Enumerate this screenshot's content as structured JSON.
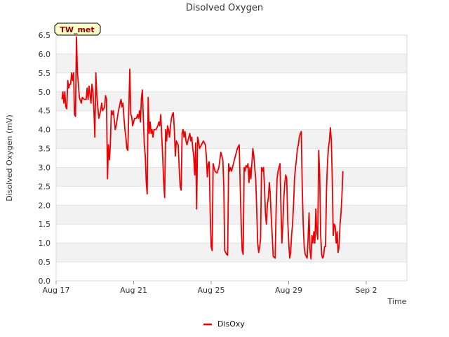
{
  "chart_data": {
    "type": "line",
    "title": "Disolved Oxygen",
    "xlabel": "Time",
    "ylabel": "Disolved Oxygen (mV)",
    "site_label": "TW_met",
    "ylim": [
      0.0,
      6.5
    ],
    "xlim_days": [
      0,
      18.1
    ],
    "y_ticks": [
      "0.0",
      "0.5",
      "1.0",
      "1.5",
      "2.0",
      "2.5",
      "3.0",
      "3.5",
      "4.0",
      "4.5",
      "5.0",
      "5.5",
      "6.0",
      "6.5"
    ],
    "x_ticks": [
      {
        "label": "Aug 17",
        "day": 0
      },
      {
        "label": "Aug 21",
        "day": 4
      },
      {
        "label": "Aug 25",
        "day": 8
      },
      {
        "label": "Aug 29",
        "day": 12
      },
      {
        "label": "Sep 2",
        "day": 16
      }
    ],
    "grid": true,
    "legend": "bottom-center",
    "colors": {
      "series": "#ee0000",
      "band": "#f2f2f2",
      "badge_bg": "#ffffcc"
    },
    "series": [
      {
        "name": "DisOxy",
        "points": [
          [
            0.3,
            4.8
          ],
          [
            0.35,
            5.0
          ],
          [
            0.4,
            4.7
          ],
          [
            0.45,
            5.0
          ],
          [
            0.5,
            4.6
          ],
          [
            0.55,
            4.55
          ],
          [
            0.6,
            5.3
          ],
          [
            0.65,
            5.1
          ],
          [
            0.7,
            5.2
          ],
          [
            0.75,
            5.2
          ],
          [
            0.8,
            5.5
          ],
          [
            0.85,
            5.3
          ],
          [
            0.9,
            5.5
          ],
          [
            0.95,
            4.4
          ],
          [
            1.0,
            4.35
          ],
          [
            1.05,
            6.45
          ],
          [
            1.1,
            5.5
          ],
          [
            1.15,
            5.2
          ],
          [
            1.2,
            4.85
          ],
          [
            1.3,
            4.7
          ],
          [
            1.35,
            4.85
          ],
          [
            1.45,
            4.8
          ],
          [
            1.55,
            4.8
          ],
          [
            1.6,
            5.1
          ],
          [
            1.65,
            4.8
          ],
          [
            1.7,
            5.15
          ],
          [
            1.8,
            4.7
          ],
          [
            1.85,
            5.2
          ],
          [
            1.9,
            5.0
          ],
          [
            1.95,
            4.5
          ],
          [
            2.0,
            3.8
          ],
          [
            2.05,
            5.5
          ],
          [
            2.1,
            4.9
          ],
          [
            2.15,
            4.6
          ],
          [
            2.2,
            4.3
          ],
          [
            2.3,
            4.5
          ],
          [
            2.35,
            4.7
          ],
          [
            2.4,
            4.5
          ],
          [
            2.5,
            4.6
          ],
          [
            2.55,
            4.9
          ],
          [
            2.6,
            4.8
          ],
          [
            2.65,
            2.7
          ],
          [
            2.7,
            3.6
          ],
          [
            2.75,
            3.2
          ],
          [
            2.8,
            3.6
          ],
          [
            2.85,
            4.5
          ],
          [
            2.9,
            4.4
          ],
          [
            2.95,
            4.5
          ],
          [
            3.05,
            4.0
          ],
          [
            3.1,
            4.1
          ],
          [
            3.2,
            4.45
          ],
          [
            3.3,
            4.7
          ],
          [
            3.35,
            4.8
          ],
          [
            3.4,
            4.6
          ],
          [
            3.45,
            4.7
          ],
          [
            3.5,
            4.3
          ],
          [
            3.55,
            4.0
          ],
          [
            3.6,
            3.8
          ],
          [
            3.65,
            3.5
          ],
          [
            3.7,
            3.45
          ],
          [
            3.75,
            4.5
          ],
          [
            3.8,
            5.6
          ],
          [
            3.85,
            4.4
          ],
          [
            3.9,
            4.35
          ],
          [
            3.95,
            4.1
          ],
          [
            4.05,
            4.3
          ],
          [
            4.15,
            4.3
          ],
          [
            4.2,
            4.4
          ],
          [
            4.25,
            4.3
          ],
          [
            4.3,
            4.5
          ],
          [
            4.35,
            4.2
          ],
          [
            4.4,
            4.8
          ],
          [
            4.45,
            5.05
          ],
          [
            4.5,
            4.3
          ],
          [
            4.55,
            3.6
          ],
          [
            4.6,
            3.3
          ],
          [
            4.65,
            2.6
          ],
          [
            4.7,
            2.3
          ],
          [
            4.75,
            4.85
          ],
          [
            4.8,
            3.9
          ],
          [
            4.85,
            4.2
          ],
          [
            4.9,
            3.9
          ],
          [
            4.95,
            4.0
          ],
          [
            5.0,
            3.8
          ],
          [
            5.05,
            4.0
          ],
          [
            5.15,
            4.0
          ],
          [
            5.25,
            4.1
          ],
          [
            5.3,
            4.2
          ],
          [
            5.35,
            4.1
          ],
          [
            5.4,
            4.4
          ],
          [
            5.45,
            3.8
          ],
          [
            5.5,
            3.3
          ],
          [
            5.55,
            2.6
          ],
          [
            5.6,
            2.2
          ],
          [
            5.65,
            4.0
          ],
          [
            5.7,
            3.7
          ],
          [
            5.75,
            4.1
          ],
          [
            5.8,
            4.0
          ],
          [
            5.85,
            3.8
          ],
          [
            5.9,
            4.1
          ],
          [
            5.95,
            4.3
          ],
          [
            6.0,
            4.4
          ],
          [
            6.05,
            4.45
          ],
          [
            6.1,
            4.0
          ],
          [
            6.15,
            3.3
          ],
          [
            6.2,
            3.7
          ],
          [
            6.25,
            3.65
          ],
          [
            6.3,
            3.6
          ],
          [
            6.35,
            3.0
          ],
          [
            6.4,
            2.5
          ],
          [
            6.45,
            2.4
          ],
          [
            6.5,
            3.9
          ],
          [
            6.55,
            4.0
          ],
          [
            6.6,
            3.8
          ],
          [
            6.65,
            3.95
          ],
          [
            6.7,
            3.7
          ],
          [
            6.75,
            3.6
          ],
          [
            6.8,
            3.7
          ],
          [
            6.85,
            3.8
          ],
          [
            6.9,
            3.9
          ],
          [
            6.95,
            3.7
          ],
          [
            7.0,
            3.8
          ],
          [
            7.05,
            3.5
          ],
          [
            7.1,
            3.3
          ],
          [
            7.15,
            2.8
          ],
          [
            7.2,
            3.65
          ],
          [
            7.25,
            1.9
          ],
          [
            7.3,
            3.8
          ],
          [
            7.35,
            3.7
          ],
          [
            7.4,
            3.5
          ],
          [
            7.5,
            3.6
          ],
          [
            7.6,
            3.7
          ],
          [
            7.7,
            3.6
          ],
          [
            7.75,
            3.3
          ],
          [
            7.8,
            2.75
          ],
          [
            7.85,
            3.1
          ],
          [
            7.9,
            3.15
          ],
          [
            7.95,
            1.8
          ],
          [
            8.0,
            0.9
          ],
          [
            8.05,
            0.8
          ],
          [
            8.1,
            3.1
          ],
          [
            8.15,
            3.0
          ],
          [
            8.2,
            2.9
          ],
          [
            8.3,
            2.85
          ],
          [
            8.4,
            3.0
          ],
          [
            8.45,
            3.2
          ],
          [
            8.5,
            3.4
          ],
          [
            8.55,
            3.3
          ],
          [
            8.6,
            3.2
          ],
          [
            8.65,
            2.5
          ],
          [
            8.7,
            0.8
          ],
          [
            8.75,
            0.75
          ],
          [
            8.8,
            0.7
          ],
          [
            8.85,
            0.68
          ],
          [
            8.9,
            3.1
          ],
          [
            8.95,
            2.9
          ],
          [
            9.0,
            3.0
          ],
          [
            9.05,
            2.9
          ],
          [
            9.1,
            3.0
          ],
          [
            9.2,
            3.2
          ],
          [
            9.3,
            3.4
          ],
          [
            9.35,
            3.5
          ],
          [
            9.4,
            3.55
          ],
          [
            9.45,
            3.6
          ],
          [
            9.5,
            2.5
          ],
          [
            9.55,
            1.5
          ],
          [
            9.6,
            0.8
          ],
          [
            9.65,
            0.7
          ],
          [
            9.7,
            3.0
          ],
          [
            9.75,
            2.9
          ],
          [
            9.8,
            3.05
          ],
          [
            9.85,
            3.0
          ],
          [
            9.9,
            3.1
          ],
          [
            9.95,
            2.6
          ],
          [
            10.0,
            3.0
          ],
          [
            10.05,
            2.7
          ],
          [
            10.1,
            3.1
          ],
          [
            10.15,
            3.5
          ],
          [
            10.2,
            3.3
          ],
          [
            10.25,
            3.0
          ],
          [
            10.3,
            2.7
          ],
          [
            10.35,
            1.9
          ],
          [
            10.4,
            1.0
          ],
          [
            10.45,
            0.75
          ],
          [
            10.5,
            0.9
          ],
          [
            10.55,
            1.1
          ],
          [
            10.6,
            3.0
          ],
          [
            10.65,
            2.9
          ],
          [
            10.7,
            3.0
          ],
          [
            10.75,
            2.5
          ],
          [
            10.8,
            1.8
          ],
          [
            10.85,
            1.5
          ],
          [
            10.9,
            2.0
          ],
          [
            10.95,
            2.2
          ],
          [
            11.0,
            2.6
          ],
          [
            11.05,
            2.3
          ],
          [
            11.1,
            1.7
          ],
          [
            11.15,
            1.2
          ],
          [
            11.2,
            0.65
          ],
          [
            11.3,
            0.6
          ],
          [
            11.35,
            1.8
          ],
          [
            11.4,
            2.7
          ],
          [
            11.45,
            2.9
          ],
          [
            11.5,
            3.0
          ],
          [
            11.55,
            3.1
          ],
          [
            11.6,
            2.0
          ],
          [
            11.65,
            1.0
          ],
          [
            11.7,
            1.5
          ],
          [
            11.75,
            2.2
          ],
          [
            11.8,
            2.6
          ],
          [
            11.85,
            2.8
          ],
          [
            11.9,
            2.7
          ],
          [
            11.95,
            1.6
          ],
          [
            12.0,
            1.05
          ],
          [
            12.05,
            0.6
          ],
          [
            12.1,
            0.75
          ],
          [
            12.15,
            1.2
          ],
          [
            12.2,
            1.5
          ],
          [
            12.25,
            2.0
          ],
          [
            12.3,
            2.7
          ],
          [
            12.35,
            3.0
          ],
          [
            12.4,
            3.2
          ],
          [
            12.45,
            3.5
          ],
          [
            12.5,
            3.6
          ],
          [
            12.55,
            3.8
          ],
          [
            12.6,
            3.9
          ],
          [
            12.65,
            3.95
          ],
          [
            12.7,
            2.5
          ],
          [
            12.75,
            1.5
          ],
          [
            12.8,
            0.9
          ],
          [
            12.85,
            0.7
          ],
          [
            12.9,
            0.65
          ],
          [
            12.95,
            0.6
          ],
          [
            13.0,
            1.1
          ],
          [
            13.05,
            1.8
          ],
          [
            13.1,
            0.8
          ],
          [
            13.15,
            0.58
          ],
          [
            13.2,
            1.2
          ],
          [
            13.25,
            1.0
          ],
          [
            13.3,
            1.3
          ],
          [
            13.35,
            1.0
          ],
          [
            13.4,
            1.9
          ],
          [
            13.45,
            1.3
          ],
          [
            13.5,
            1.1
          ],
          [
            13.55,
            3.45
          ],
          [
            13.6,
            2.8
          ],
          [
            13.65,
            1.2
          ],
          [
            13.7,
            0.7
          ],
          [
            13.75,
            0.6
          ],
          [
            13.8,
            0.65
          ],
          [
            13.85,
            0.9
          ],
          [
            13.9,
            0.9
          ],
          [
            13.95,
            2.4
          ],
          [
            14.0,
            3.1
          ],
          [
            14.05,
            3.5
          ],
          [
            14.1,
            3.7
          ],
          [
            14.15,
            4.05
          ],
          [
            14.2,
            3.7
          ],
          [
            14.25,
            2.7
          ],
          [
            14.3,
            1.2
          ],
          [
            14.35,
            1.5
          ],
          [
            14.4,
            1.45
          ],
          [
            14.45,
            1.0
          ],
          [
            14.5,
            1.3
          ],
          [
            14.55,
            0.75
          ],
          [
            14.6,
            0.9
          ],
          [
            14.65,
            1.5
          ],
          [
            14.7,
            1.8
          ],
          [
            14.75,
            2.3
          ],
          [
            14.8,
            2.9
          ]
        ]
      }
    ]
  }
}
